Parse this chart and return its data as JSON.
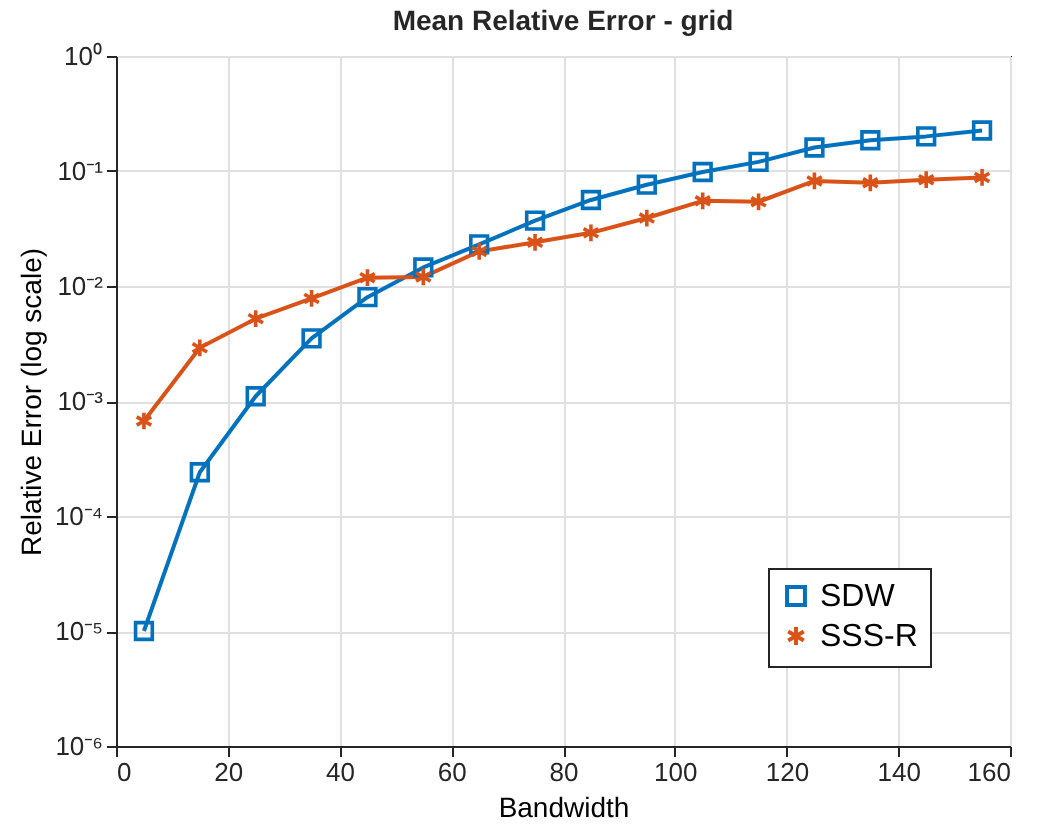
{
  "chart_data": {
    "type": "line",
    "title": "Mean Relative Error - grid",
    "xlabel": "Bandwidth",
    "ylabel": "Relative Error (log scale)",
    "x": [
      5,
      15,
      25,
      35,
      45,
      55,
      65,
      75,
      85,
      95,
      105,
      115,
      125,
      135,
      145,
      155
    ],
    "series": [
      {
        "name": "SDW",
        "color": "#0072bd",
        "marker": "square",
        "values": [
          1e-05,
          0.00024,
          0.0011,
          0.0035,
          0.008,
          0.0145,
          0.023,
          0.037,
          0.056,
          0.076,
          0.098,
          0.12,
          0.16,
          0.185,
          0.2,
          0.225
        ]
      },
      {
        "name": "SSS-R",
        "color": "#d95319",
        "marker": "cross",
        "values": [
          0.00067,
          0.0029,
          0.0052,
          0.0078,
          0.0118,
          0.012,
          0.02,
          0.024,
          0.029,
          0.039,
          0.055,
          0.054,
          0.082,
          0.079,
          0.084,
          0.088
        ]
      }
    ],
    "log": "y",
    "xlim": [
      0,
      160
    ],
    "xticks": [
      0,
      20,
      40,
      60,
      80,
      100,
      120,
      140,
      160
    ],
    "ylim": [
      1e-06,
      1
    ],
    "yticks": [
      {
        "value": 1e-06,
        "label": "10⁻⁶"
      },
      {
        "value": 1e-05,
        "label": "10⁻⁵"
      },
      {
        "value": 0.0001,
        "label": "10⁻⁴"
      },
      {
        "value": 0.001,
        "label": "10⁻³"
      },
      {
        "value": 0.01,
        "label": "10⁻²"
      },
      {
        "value": 0.1,
        "label": "10⁻¹"
      },
      {
        "value": 1,
        "label": "10⁰"
      }
    ],
    "grid": true,
    "legend": "bottom right",
    "line_style": "solid"
  }
}
